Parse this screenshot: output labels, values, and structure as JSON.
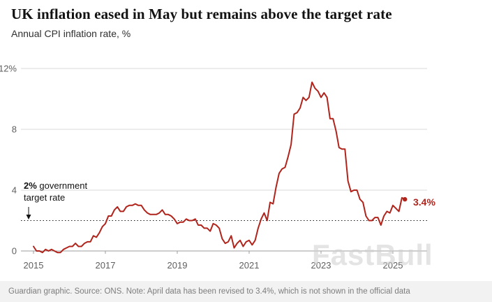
{
  "page": {
    "title": "UK inflation eased in May but remains above the target rate",
    "subtitle": "Annual CPI inflation rate, %",
    "footer": "Guardian graphic. Source: ONS. Note: April data has been revised to 3.4%, which is not shown in the official data",
    "watermark": "FastBull"
  },
  "annotation": {
    "bold": "2%",
    "rest": " government",
    "line2": "target rate"
  },
  "colors": {
    "line": "#b0241c",
    "grid": "#d9d9d9",
    "zero_line": "#9c9c9c",
    "axis_text": "#5f5f5f",
    "target": "#1a1a1a"
  },
  "chart_data": {
    "type": "line",
    "title": "UK inflation eased in May but remains above the target rate",
    "subtitle": "Annual CPI inflation rate, %",
    "xlabel": "",
    "ylabel": "Annual CPI inflation rate, %",
    "x_tick_labels": [
      "2015",
      "2017",
      "2019",
      "2021",
      "2023",
      "2025"
    ],
    "y_ticks": [
      0,
      4,
      8,
      12
    ],
    "y_tick_labels": [
      "0",
      "4",
      "8",
      "12%"
    ],
    "ylim": [
      -0.6,
      12.5
    ],
    "grid": true,
    "target_line": 2,
    "target_label": "2% government target rate",
    "x_start": "2015-01",
    "x_end": "2025-05",
    "series": [
      {
        "name": "Annual CPI inflation rate (%)",
        "frequency": "monthly",
        "values": [
          0.3,
          0.0,
          0.0,
          -0.1,
          0.1,
          0.0,
          0.1,
          0.0,
          -0.1,
          -0.1,
          0.1,
          0.2,
          0.3,
          0.3,
          0.5,
          0.3,
          0.3,
          0.5,
          0.6,
          0.6,
          1.0,
          0.9,
          1.2,
          1.6,
          1.8,
          2.3,
          2.3,
          2.7,
          2.9,
          2.6,
          2.6,
          2.9,
          3.0,
          3.0,
          3.1,
          3.0,
          3.0,
          2.7,
          2.5,
          2.4,
          2.4,
          2.4,
          2.5,
          2.7,
          2.4,
          2.4,
          2.3,
          2.1,
          1.8,
          1.9,
          1.9,
          2.1,
          2.0,
          2.0,
          2.1,
          1.7,
          1.7,
          1.5,
          1.5,
          1.3,
          1.8,
          1.7,
          1.5,
          0.8,
          0.5,
          0.6,
          1.0,
          0.2,
          0.5,
          0.7,
          0.3,
          0.6,
          0.7,
          0.4,
          0.7,
          1.5,
          2.1,
          2.5,
          2.0,
          3.2,
          3.1,
          4.2,
          5.1,
          5.4,
          5.5,
          6.2,
          7.0,
          9.0,
          9.1,
          9.4,
          10.1,
          9.9,
          10.1,
          11.1,
          10.7,
          10.5,
          10.1,
          10.4,
          10.1,
          8.7,
          8.7,
          7.9,
          6.8,
          6.7,
          6.7,
          4.6,
          3.9,
          4.0,
          4.0,
          3.4,
          3.2,
          2.3,
          2.0,
          2.0,
          2.2,
          2.2,
          1.7,
          2.3,
          2.6,
          2.5,
          3.0,
          2.8,
          2.6,
          3.5,
          3.4
        ]
      }
    ],
    "end_point": {
      "date": "2025-05",
      "value": 3.4,
      "label": "3.4%"
    }
  }
}
